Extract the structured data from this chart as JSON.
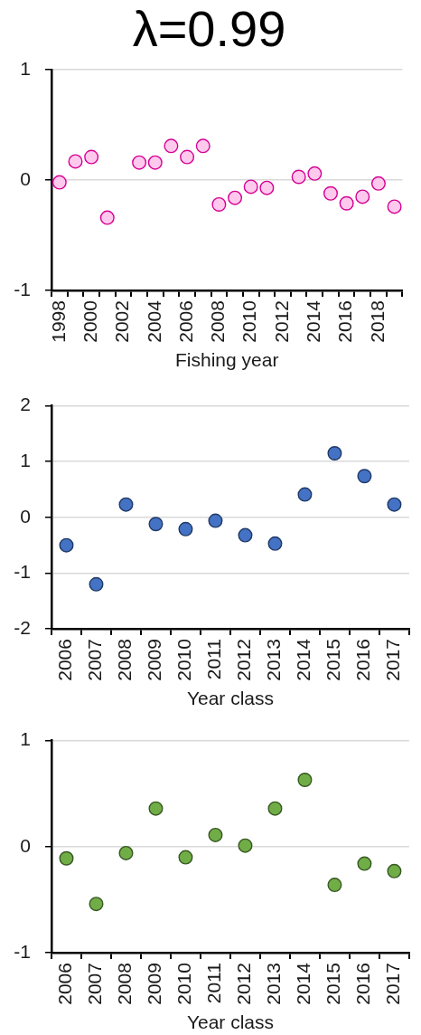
{
  "chart_data": [
    {
      "type": "scatter",
      "title": "λ=0.99",
      "xlabel": "Fishing year",
      "categories": [
        "1998",
        null,
        "2000",
        null,
        "2002",
        null,
        "2004",
        null,
        "2006",
        null,
        "2008",
        null,
        "2010",
        null,
        "2012",
        null,
        "2014",
        null,
        "2016",
        null,
        "2018",
        null
      ],
      "values": [
        -0.02,
        0.17,
        0.21,
        -0.34,
        null,
        0.16,
        0.16,
        0.31,
        0.21,
        0.31,
        -0.22,
        -0.16,
        -0.06,
        -0.07,
        null,
        0.03,
        0.06,
        -0.12,
        -0.21,
        -0.15,
        -0.03,
        -0.24
      ],
      "color": "#ffc9ee",
      "marker": "circle",
      "ylim": [
        -1,
        1
      ],
      "yticks": [
        -1,
        0,
        1
      ],
      "grid": "y"
    },
    {
      "type": "scatter",
      "xlabel": "Year class",
      "categories": [
        "2006",
        "2007",
        "2008",
        "2009",
        "2010",
        "2011",
        "2012",
        "2013",
        "2014",
        "2015",
        "2016",
        "2017"
      ],
      "values": [
        -0.5,
        -1.2,
        0.23,
        -0.12,
        -0.21,
        -0.06,
        -0.32,
        -0.47,
        0.41,
        1.15,
        0.74,
        0.23
      ],
      "color": "#4472c4",
      "marker": "circle",
      "ylim": [
        -2,
        2
      ],
      "yticks": [
        -2,
        -1,
        0,
        1,
        2
      ],
      "grid": "y"
    },
    {
      "type": "scatter",
      "xlabel": "Year class",
      "categories": [
        "2006",
        "2007",
        "2008",
        "2009",
        "2010",
        "2011",
        "2012",
        "2013",
        "2014",
        "2015",
        "2016",
        "2017"
      ],
      "values": [
        -0.11,
        -0.54,
        -0.06,
        0.36,
        -0.1,
        0.11,
        0.01,
        0.36,
        0.63,
        -0.36,
        -0.16,
        -0.23
      ],
      "color": "#70ad47",
      "marker": "circle",
      "ylim": [
        -1,
        1
      ],
      "yticks": [
        -1,
        0,
        1
      ],
      "grid": "y"
    }
  ]
}
